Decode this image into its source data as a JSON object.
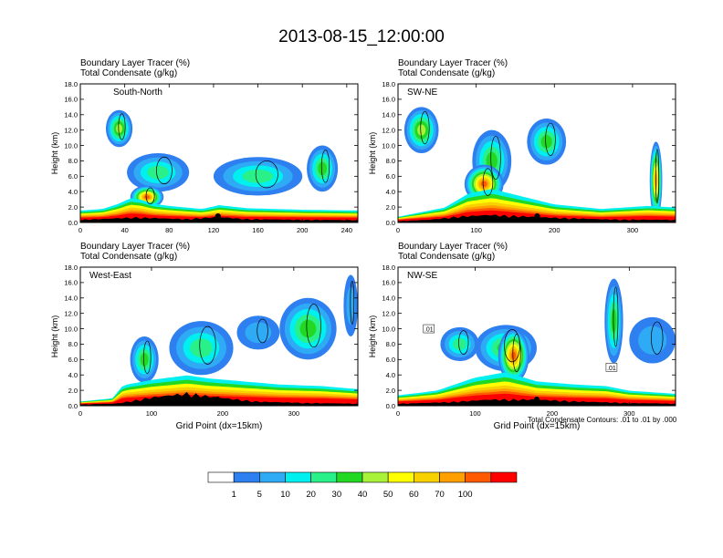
{
  "figure": {
    "title": "2013-08-15_12:00:00",
    "contour_note": "Total Condensate Contours: .01 to .01 by .000"
  },
  "chart_data": {
    "type": "heatmap",
    "title": "2013-08-15_12:00:00",
    "shaded_field": "Boundary Layer Tracer (%)",
    "contour_field": "Total Condensate (g/kg)",
    "colorbar": {
      "levels": [
        "1",
        "5",
        "10",
        "20",
        "30",
        "40",
        "50",
        "60",
        "70",
        "100"
      ],
      "colors": [
        "#ffffff",
        "#2e7ff0",
        "#2faaf5",
        "#00f0f0",
        "#2af08a",
        "#22d822",
        "#a8f23a",
        "#ffff00",
        "#f8d200",
        "#ffa000",
        "#ff5a00",
        "#ff0000"
      ]
    },
    "panels": [
      {
        "id": "south-north",
        "label": "South-North",
        "line1": "Boundary Layer Tracer   (%)",
        "line2": "Total Condensate   (g/kg)",
        "ylabel": "Height (km)",
        "xlabel": "",
        "ylim": [
          0,
          18
        ],
        "yticks": [
          "0.0",
          "2.0",
          "4.0",
          "6.0",
          "8.0",
          "10.0",
          "12.0",
          "14.0",
          "16.0",
          "18.0"
        ],
        "xlim": [
          0,
          250
        ],
        "xticks": [
          0,
          40,
          80,
          120,
          160,
          200,
          240
        ],
        "marker_x": 124,
        "terrain": [
          [
            0,
            0.4
          ],
          [
            25,
            0.55
          ],
          [
            50,
            0.75
          ],
          [
            75,
            0.6
          ],
          [
            95,
            0.5
          ],
          [
            124,
            0.8
          ],
          [
            150,
            0.5
          ],
          [
            200,
            0.4
          ],
          [
            250,
            0.35
          ]
        ],
        "pbl_top": [
          [
            0,
            1.4
          ],
          [
            20,
            1.6
          ],
          [
            35,
            2.3
          ],
          [
            45,
            3.0
          ],
          [
            55,
            2.8
          ],
          [
            65,
            2.3
          ],
          [
            80,
            2.0
          ],
          [
            110,
            1.6
          ],
          [
            125,
            2.1
          ],
          [
            150,
            1.7
          ],
          [
            200,
            1.5
          ],
          [
            250,
            1.4
          ]
        ],
        "blobs": [
          {
            "x": 35,
            "z": 12.2,
            "rx": 12,
            "rz": 2.4,
            "level": 6
          },
          {
            "x": 70,
            "z": 6.5,
            "rx": 28,
            "rz": 2.5,
            "level": 4
          },
          {
            "x": 160,
            "z": 6.0,
            "rx": 40,
            "rz": 2.5,
            "level": 4
          },
          {
            "x": 218,
            "z": 7.0,
            "rx": 14,
            "rz": 3.0,
            "level": 5
          },
          {
            "x": 60,
            "z": 3.3,
            "rx": 15,
            "rz": 1.5,
            "level": 10
          }
        ]
      },
      {
        "id": "sw-ne",
        "label": "SW-NE",
        "line1": "Boundary Layer Tracer   (%)",
        "line2": "Total Condensate   (g/kg)",
        "ylabel": "Height (km)",
        "xlabel": "",
        "ylim": [
          0,
          18
        ],
        "yticks": [
          "0.0",
          "2.0",
          "4.0",
          "6.0",
          "8.0",
          "10.0",
          "12.0",
          "14.0",
          "16.0",
          "18.0"
        ],
        "xlim": [
          0,
          355
        ],
        "xticks": [
          0,
          100,
          200,
          300
        ],
        "marker_x": 178,
        "terrain": [
          [
            0,
            0.2
          ],
          [
            40,
            0.4
          ],
          [
            80,
            0.9
          ],
          [
            120,
            1.1
          ],
          [
            178,
            0.8
          ],
          [
            250,
            0.5
          ],
          [
            300,
            0.4
          ],
          [
            355,
            0.4
          ]
        ],
        "pbl_top": [
          [
            0,
            0.6
          ],
          [
            60,
            1.8
          ],
          [
            90,
            3.6
          ],
          [
            120,
            4.2
          ],
          [
            160,
            3.2
          ],
          [
            200,
            2.2
          ],
          [
            260,
            1.6
          ],
          [
            320,
            2.0
          ],
          [
            355,
            1.8
          ]
        ],
        "blobs": [
          {
            "x": 30,
            "z": 12.0,
            "rx": 22,
            "rz": 3.0,
            "level": 6
          },
          {
            "x": 120,
            "z": 8.0,
            "rx": 25,
            "rz": 4.0,
            "level": 5
          },
          {
            "x": 190,
            "z": 10.5,
            "rx": 25,
            "rz": 3.0,
            "level": 5
          },
          {
            "x": 110,
            "z": 5.0,
            "rx": 25,
            "rz": 2.5,
            "level": 10
          },
          {
            "x": 330,
            "z": 5.5,
            "rx": 8,
            "rz": 5.0,
            "level": 9
          }
        ]
      },
      {
        "id": "west-east",
        "label": "West-East",
        "line1": "Boundary Layer Tracer   (%)",
        "line2": "Total Condensate   (g/kg)",
        "ylabel": "Height (km)",
        "xlabel": "Grid Point (dx=15km)",
        "ylim": [
          0,
          18
        ],
        "yticks": [
          "0.0",
          "2.0",
          "4.0",
          "6.0",
          "8.0",
          "10.0",
          "12.0",
          "14.0",
          "16.0",
          "18.0"
        ],
        "xlim": [
          0,
          390
        ],
        "xticks": [
          0,
          100,
          200,
          300
        ],
        "marker_x": 193,
        "terrain": [
          [
            0,
            0.2
          ],
          [
            50,
            0.3
          ],
          [
            100,
            1.2
          ],
          [
            150,
            1.8
          ],
          [
            193,
            1.2
          ],
          [
            250,
            0.6
          ],
          [
            320,
            0.4
          ],
          [
            390,
            0.3
          ]
        ],
        "pbl_top": [
          [
            0,
            0.4
          ],
          [
            45,
            0.8
          ],
          [
            60,
            2.5
          ],
          [
            100,
            3.2
          ],
          [
            150,
            3.8
          ],
          [
            180,
            3.4
          ],
          [
            230,
            3.0
          ],
          [
            280,
            2.6
          ],
          [
            340,
            2.4
          ],
          [
            390,
            2.0
          ]
        ],
        "blobs": [
          {
            "x": 170,
            "z": 7.5,
            "rx": 45,
            "rz": 3.5,
            "level": 4
          },
          {
            "x": 90,
            "z": 6.0,
            "rx": 20,
            "rz": 3.0,
            "level": 5
          },
          {
            "x": 320,
            "z": 10.0,
            "rx": 40,
            "rz": 4.0,
            "level": 5
          },
          {
            "x": 250,
            "z": 9.5,
            "rx": 30,
            "rz": 2.2,
            "level": 2
          },
          {
            "x": 380,
            "z": 13.0,
            "rx": 10,
            "rz": 4.0,
            "level": 2
          }
        ]
      },
      {
        "id": "nw-se",
        "label": "NW-SE",
        "line1": "Boundary Layer Tracer   (%)",
        "line2": "Total Condensate   (g/kg)",
        "ylabel": "Height (km)",
        "xlabel": "Grid Point (dx=15km)",
        "ylim": [
          0,
          18
        ],
        "yticks": [
          "0.0",
          "2.0",
          "4.0",
          "6.0",
          "8.0",
          "10.0",
          "12.0",
          "14.0",
          "16.0",
          "18.0"
        ],
        "xlim": [
          0,
          360
        ],
        "xticks": [
          0,
          100,
          200,
          300
        ],
        "marker_x": 180,
        "terrain": [
          [
            0,
            0.3
          ],
          [
            60,
            0.5
          ],
          [
            120,
            0.9
          ],
          [
            180,
            0.9
          ],
          [
            240,
            0.6
          ],
          [
            300,
            0.4
          ],
          [
            360,
            0.3
          ]
        ],
        "pbl_top": [
          [
            0,
            1.2
          ],
          [
            50,
            1.8
          ],
          [
            100,
            3.5
          ],
          [
            140,
            4.2
          ],
          [
            180,
            3.0
          ],
          [
            230,
            2.6
          ],
          [
            270,
            2.4
          ],
          [
            300,
            1.8
          ],
          [
            360,
            1.4
          ]
        ],
        "blobs": [
          {
            "x": 140,
            "z": 7.5,
            "rx": 40,
            "rz": 3.0,
            "level": 5
          },
          {
            "x": 150,
            "z": 6.5,
            "rx": 20,
            "rz": 3.5,
            "level": 10
          },
          {
            "x": 280,
            "z": 11.0,
            "rx": 12,
            "rz": 5.5,
            "level": 5
          },
          {
            "x": 80,
            "z": 8.0,
            "rx": 25,
            "rz": 2.2,
            "level": 4
          },
          {
            "x": 330,
            "z": 8.5,
            "rx": 30,
            "rz": 3.0,
            "level": 2
          }
        ],
        "contour_labels": [
          {
            "x": 40,
            "z": 10.0,
            "text": ".01"
          },
          {
            "x": 277,
            "z": 5.0,
            "text": ".01"
          }
        ]
      }
    ]
  }
}
